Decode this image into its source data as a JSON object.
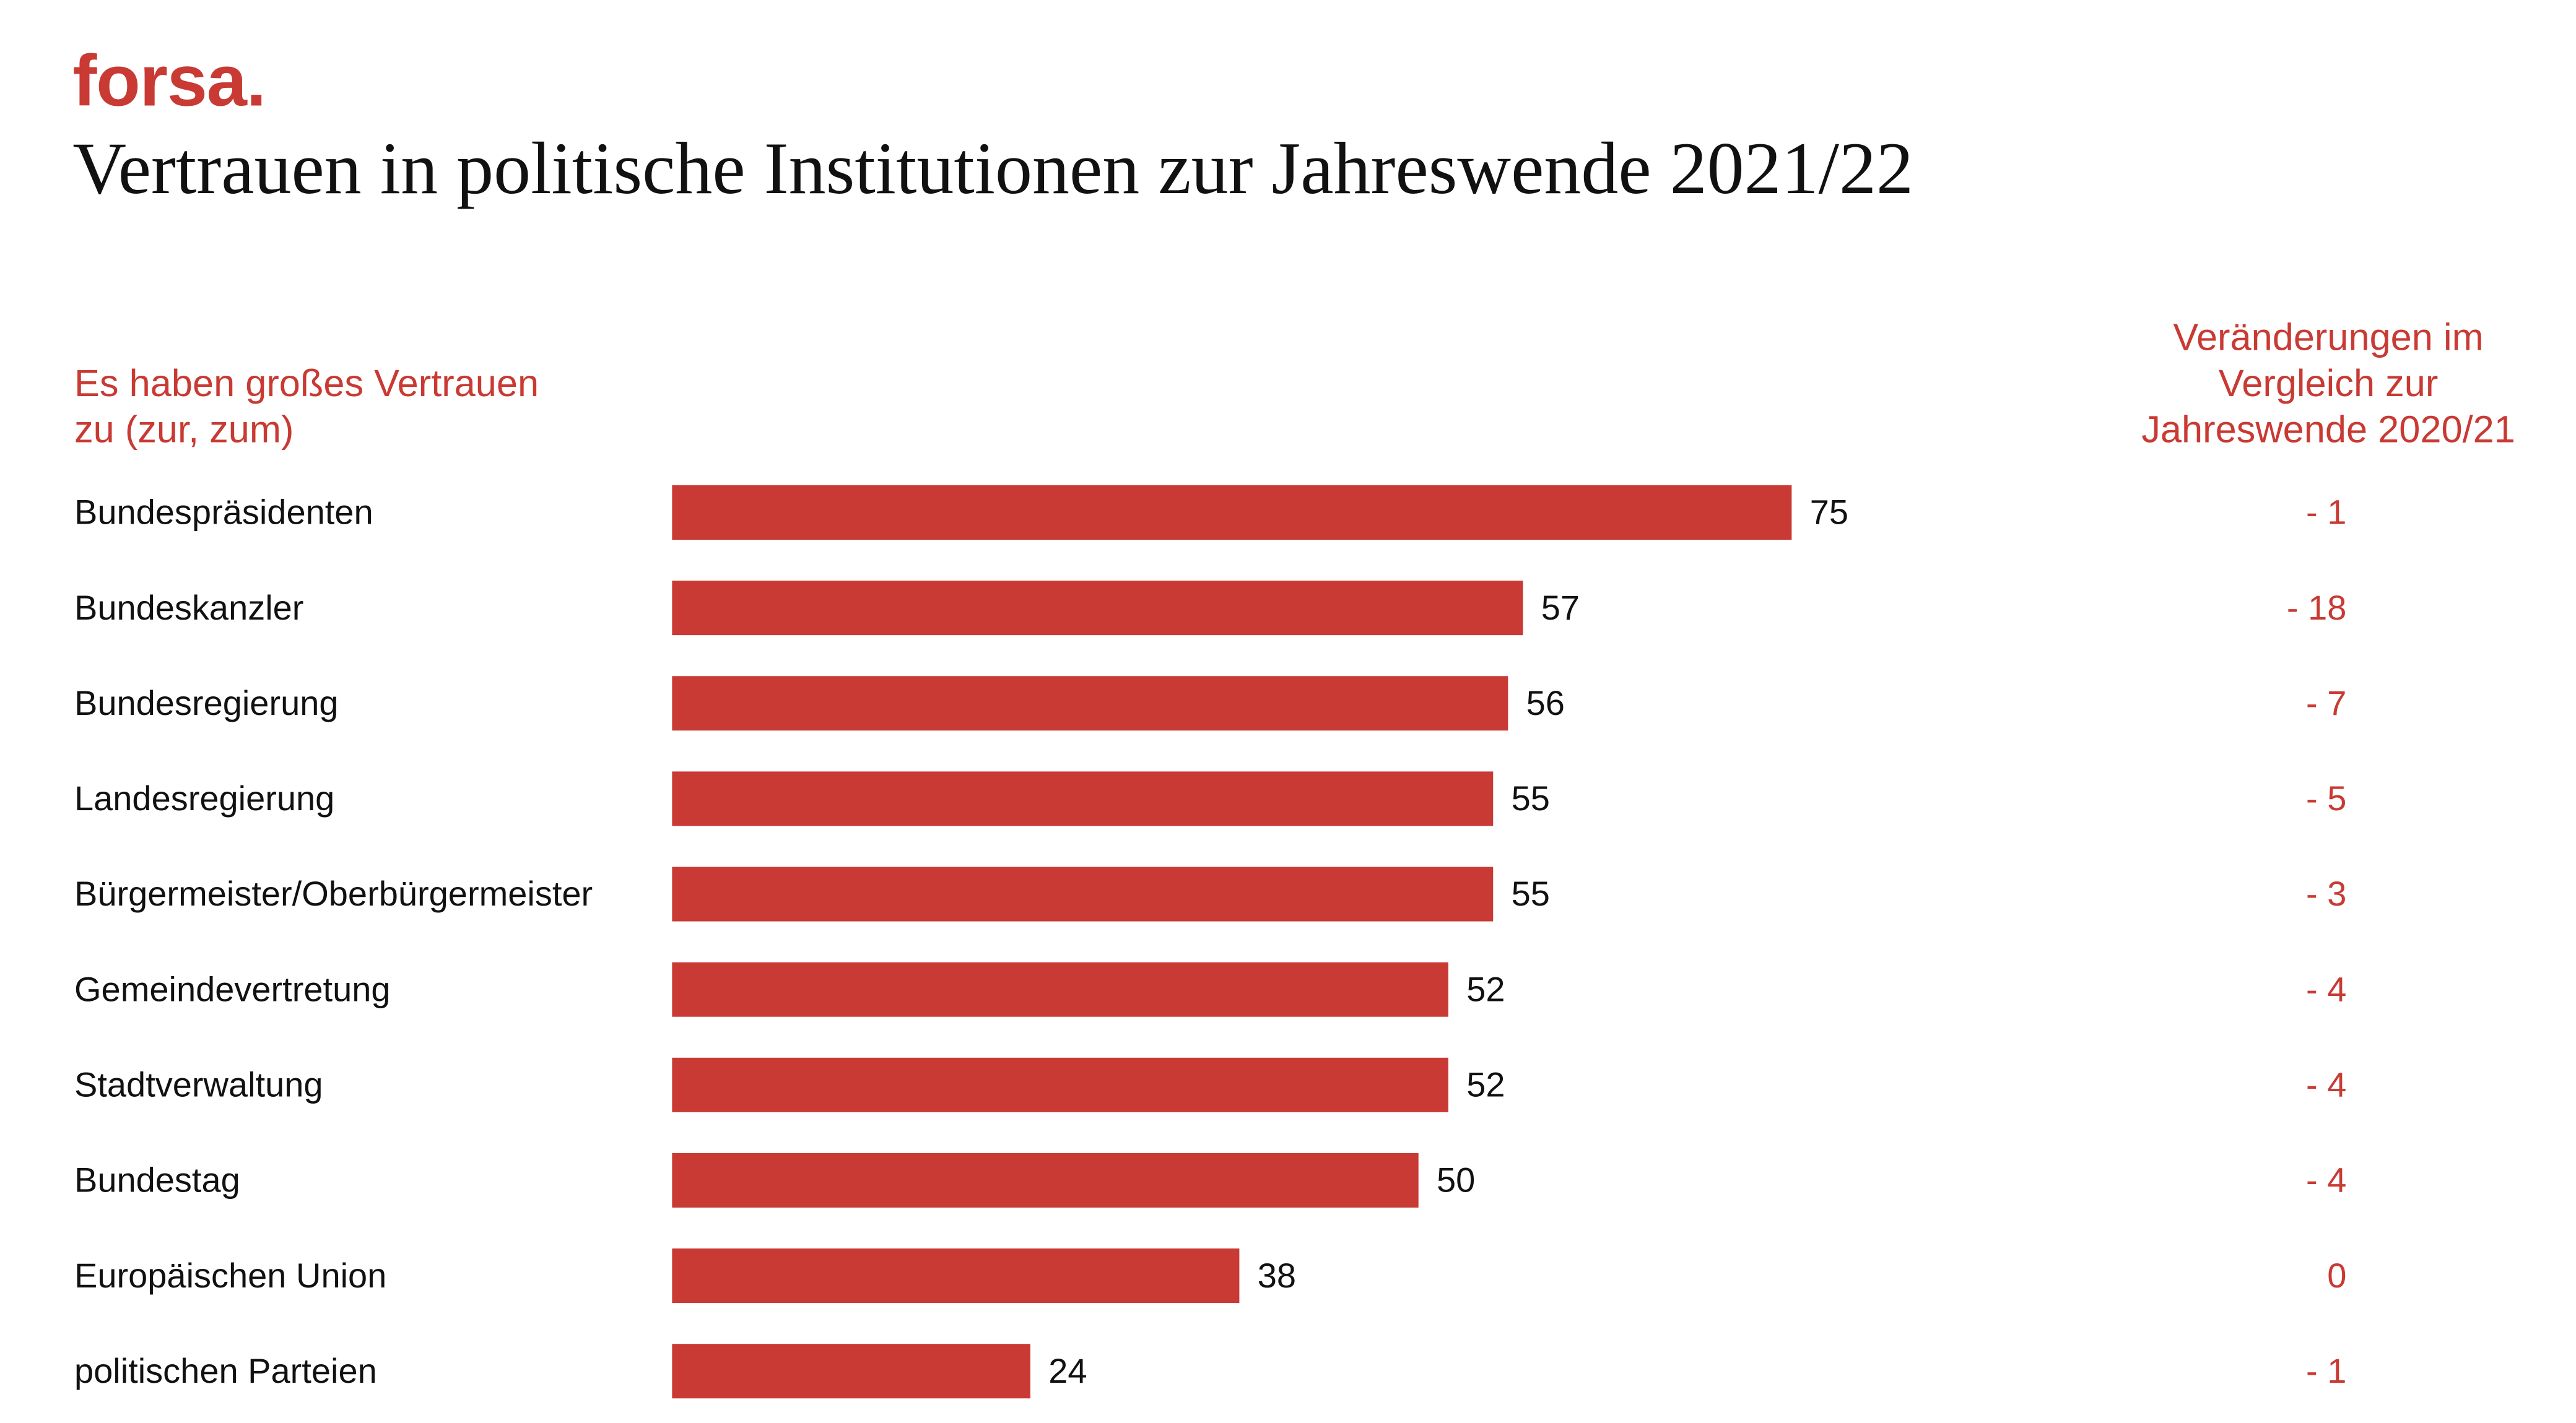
{
  "brand": {
    "logo_text": "forsa.",
    "accent_color": "#c83a33",
    "text_color": "#111111"
  },
  "chart_data": {
    "type": "bar",
    "orientation": "horizontal",
    "title": "Vertrauen in politische Institutionen zur Jahreswende 2021/22",
    "subtitle": "Es haben großes Vertrauen\nzu (zur, zum)",
    "change_header": "Veränderungen im\nVergleich zur\nJahreswende 2020/21",
    "categories": [
      "Bundespräsidenten",
      "Bundeskanzler",
      "Bundesregierung",
      "Landesregierung",
      "Bürgermeister/Oberbürgermeister",
      "Gemeindevertretung",
      "Stadtverwaltung",
      "Bundestag",
      "Europäischen Union",
      "politischen Parteien"
    ],
    "values": [
      75,
      57,
      56,
      55,
      55,
      52,
      52,
      50,
      38,
      24
    ],
    "changes": [
      "- 1",
      "- 18",
      "- 7",
      "- 5",
      "- 3",
      "- 4",
      "- 4",
      "- 4",
      "0",
      "- 1"
    ],
    "xlim": [
      0,
      100
    ],
    "grid": false,
    "legend": "none",
    "bar_color": "#c83a33"
  }
}
